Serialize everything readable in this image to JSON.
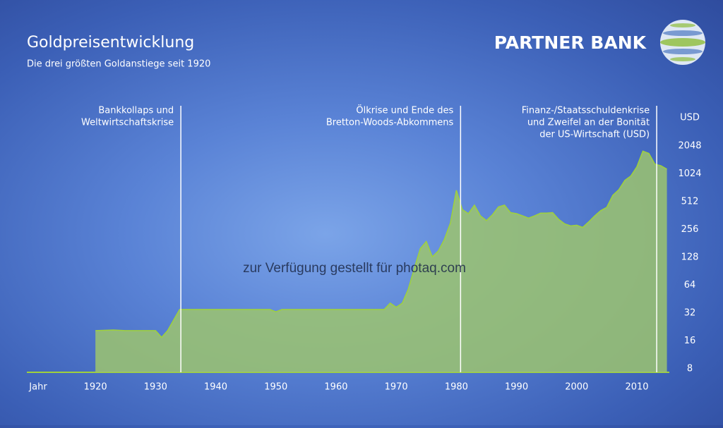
{
  "chart_data": {
    "type": "area",
    "title": "Goldpreisentwicklung",
    "subtitle": "Die drei größten Goldanstiege seit 1920",
    "brand": "PARTNER BANK",
    "watermark": "zur Verfügung gestellt für photaq.com",
    "x_label": "Jahr",
    "y_label": "USD",
    "log_scale": true,
    "x": [
      1920,
      1923,
      1925,
      1930,
      1931,
      1932,
      1933,
      1934,
      1940,
      1945,
      1949,
      1950,
      1951,
      1960,
      1968,
      1969,
      1970,
      1971,
      1972,
      1973,
      1974,
      1975,
      1976,
      1977,
      1978,
      1979,
      1980,
      1981,
      1982,
      1983,
      1984,
      1985,
      1986,
      1987,
      1988,
      1989,
      1990,
      1991,
      1992,
      1993,
      1994,
      1995,
      1996,
      1997,
      1998,
      1999,
      2000,
      2001,
      2002,
      2003,
      2004,
      2005,
      2006,
      2007,
      2008,
      2009,
      2010,
      2011,
      2012,
      2013,
      2014,
      2015
    ],
    "series": [
      {
        "name": "Goldpreis",
        "color": "#9fd13c",
        "values": [
          20.67,
          21,
          20.67,
          20.67,
          17.5,
          20.67,
          27,
          35,
          35,
          35,
          35,
          33,
          35,
          35,
          35,
          41,
          37,
          41,
          58,
          97,
          159,
          190,
          130,
          150,
          200,
          300,
          680,
          420,
          380,
          470,
          360,
          320,
          370,
          450,
          470,
          390,
          380,
          360,
          340,
          360,
          385,
          385,
          390,
          330,
          295,
          280,
          285,
          270,
          310,
          360,
          410,
          445,
          600,
          690,
          870,
          970,
          1220,
          1800,
          1700,
          1300,
          1250,
          1150
        ]
      }
    ],
    "xlim": [
      1908.6,
      2015.4
    ],
    "xticks": [
      1920,
      1930,
      1940,
      1950,
      1960,
      1970,
      1980,
      1990,
      2000,
      2010
    ],
    "ylim": [
      8,
      2048
    ],
    "yticks": [
      8,
      16,
      32,
      64,
      128,
      256,
      512,
      1024,
      2048
    ],
    "annotations": [
      {
        "x": 1934.2,
        "lines": [
          "Bankkollaps und",
          "Weltwirtschaftskrise"
        ]
      },
      {
        "x": 1980.7,
        "lines": [
          "Ölkrise und Ende des",
          "Bretton-Woods-Abkommens"
        ]
      },
      {
        "x": 2013.3,
        "lines": [
          "Finanz-/Staatsschuldenkrise",
          "und Zweifel an der Bonität",
          "der US-Wirtschaft (USD)"
        ]
      }
    ]
  }
}
